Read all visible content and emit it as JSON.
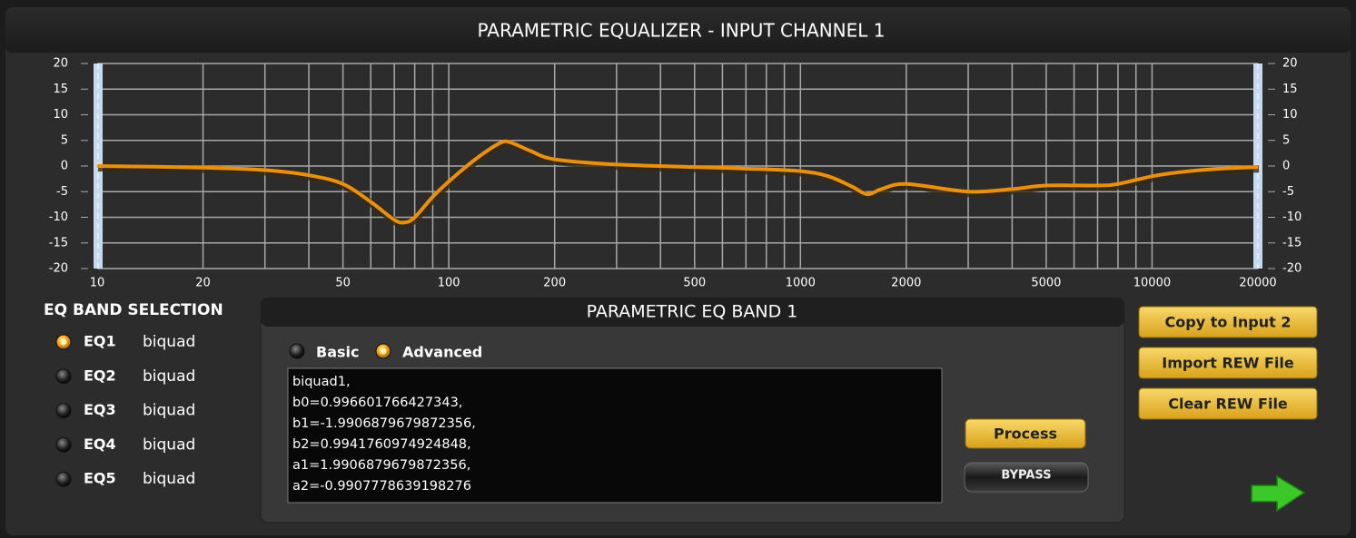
{
  "chart_data": {
    "type": "line",
    "title": "PARAMETRIC EQUALIZER - INPUT CHANNEL 1",
    "x": [
      10,
      20,
      30,
      40,
      50,
      60,
      70,
      75,
      80,
      90,
      100,
      120,
      140,
      150,
      170,
      200,
      300,
      500,
      700,
      1000,
      1200,
      1400,
      1550,
      1700,
      2000,
      3000,
      4000,
      5000,
      7000,
      8000,
      10000,
      12000,
      15000,
      20000
    ],
    "values": [
      0,
      -0.3,
      -0.8,
      -1.8,
      -3.5,
      -7,
      -10.5,
      -11,
      -10,
      -6,
      -3,
      1.5,
      4.5,
      4.6,
      3,
      1.3,
      0.3,
      -0.2,
      -0.5,
      -1,
      -2,
      -4,
      -5.5,
      -4.5,
      -3.5,
      -5,
      -4.5,
      -3.8,
      -3.8,
      -3.5,
      -2,
      -1.2,
      -0.6,
      -0.2
    ],
    "color": "#e8900f",
    "xscale": "log",
    "xlim": [
      10,
      20000
    ],
    "ylim": [
      -20,
      20
    ],
    "xticks": [
      10,
      20,
      50,
      100,
      200,
      500,
      1000,
      2000,
      5000,
      10000,
      20000
    ],
    "xminorticks": [
      30,
      40,
      60,
      70,
      80,
      90,
      300,
      400,
      600,
      700,
      800,
      900,
      3000,
      4000,
      6000,
      7000,
      8000,
      9000
    ],
    "yticks": [
      20,
      15,
      10,
      5,
      0,
      -5,
      -10,
      -15,
      -20
    ],
    "grid": true
  },
  "eq_band_selection": {
    "title": "EQ BAND SELECTION",
    "bands": [
      {
        "label": "EQ1",
        "type": "biquad",
        "selected": true
      },
      {
        "label": "EQ2",
        "type": "biquad",
        "selected": false
      },
      {
        "label": "EQ3",
        "type": "biquad",
        "selected": false
      },
      {
        "label": "EQ4",
        "type": "biquad",
        "selected": false
      },
      {
        "label": "EQ5",
        "type": "biquad",
        "selected": false
      }
    ]
  },
  "band_panel": {
    "title": "PARAMETRIC EQ BAND 1",
    "modes": [
      {
        "label": "Basic",
        "selected": false
      },
      {
        "label": "Advanced",
        "selected": true
      }
    ],
    "coefficients": [
      "biquad1,",
      "b0=0.996601766427343,",
      "b1=-1.9906879679872356,",
      "b2=0.9941760974924848,",
      "a1=1.9906879679872356,",
      "a2=-0.9907778639198276"
    ],
    "process": "Process",
    "bypass": "BYPASS"
  },
  "buttons": [
    "Copy to Input 2",
    "Import REW File",
    "Clear REW File"
  ]
}
